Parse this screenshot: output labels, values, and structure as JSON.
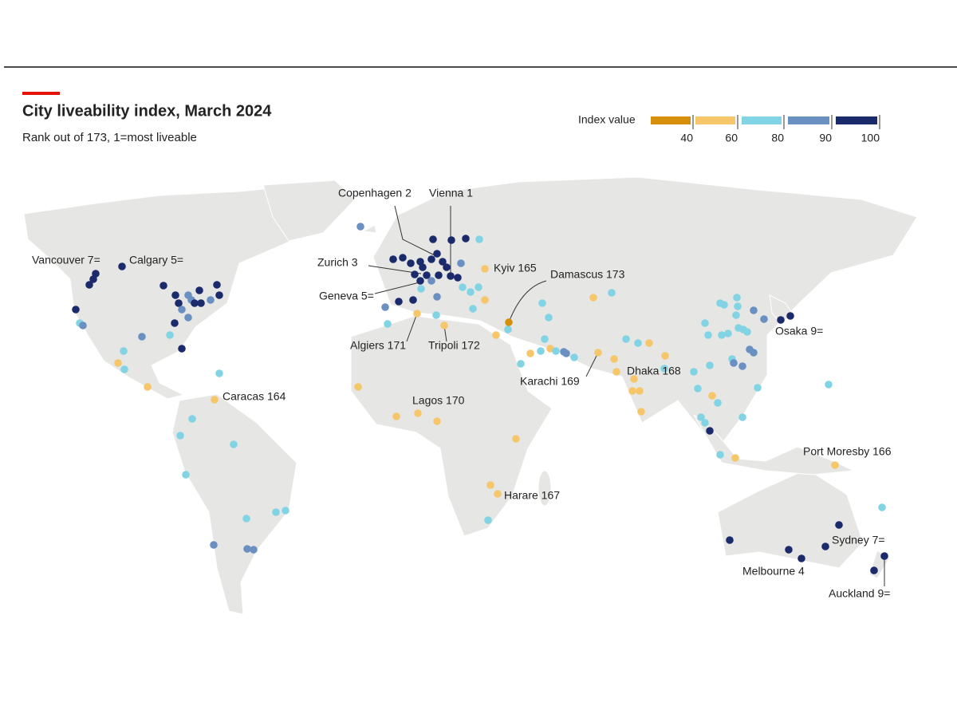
{
  "header": {
    "title": "City liveability index, March 2024",
    "subtitle": "Rank out of 173, 1=most liveable"
  },
  "legend": {
    "title": "Index value",
    "colors": [
      "#d68f0b",
      "#f6c66b",
      "#82d4e4",
      "#6a8fc1",
      "#1b2a6b"
    ],
    "ticks": [
      40,
      60,
      80,
      90,
      100
    ]
  },
  "cities": [
    "Vancouver 7=",
    "Calgary 5=",
    "Copenhagen 2",
    "Vienna 1",
    "Zurich 3",
    "Geneva 5=",
    "Kyiv 165",
    "Damascus 173",
    "Algiers 171",
    "Tripoli 172",
    "Caracas 164",
    "Lagos 170",
    "Karachi 169",
    "Dhaka 168",
    "Osaka 9=",
    "Port Moresby 166",
    "Harare 167",
    "Sydney 7=",
    "Melbourne 4",
    "Auckland 9="
  ]
}
